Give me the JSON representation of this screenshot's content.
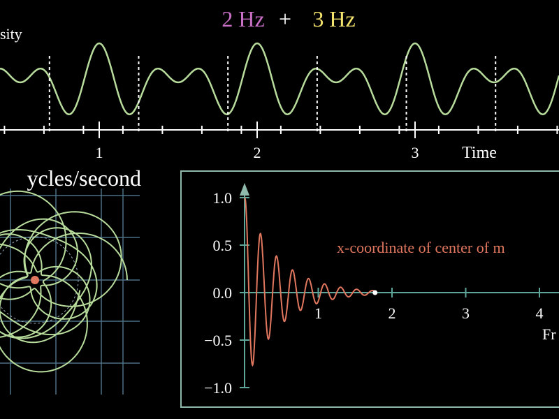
{
  "title": {
    "left": "2 Hz",
    "plus": "+",
    "right": "3 Hz"
  },
  "signal_panel": {
    "y_label": "sity",
    "x_ticks": [
      "1",
      "2",
      "3"
    ],
    "x_label": "Time"
  },
  "winding_panel": {
    "label": "ycles/second"
  },
  "center_panel": {
    "y_ticks": [
      "1.0",
      "0.5",
      "0.0",
      "−0.5",
      "−1.0"
    ],
    "x_ticks": [
      "1",
      "2",
      "3",
      "4"
    ],
    "x_label": "Fr",
    "curve_label": "x-coordinate of center of m"
  }
}
